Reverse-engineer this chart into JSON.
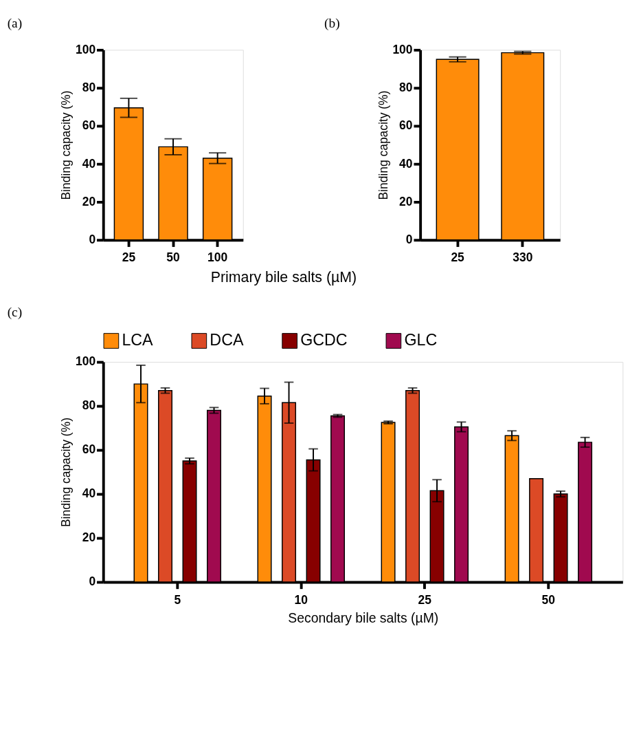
{
  "chart_data": [
    {
      "type": "bar",
      "title": "(a)",
      "xlabel": "Primary bile salts (µM)",
      "ylabel": "Binding capacity (%)",
      "categories": [
        "25",
        "50",
        "100"
      ],
      "values": [
        69.5,
        49,
        43
      ],
      "errors": [
        5,
        4.2,
        2.8
      ],
      "color": "#ff8c0a",
      "ylim": [
        0,
        100
      ],
      "yticks": [
        0,
        20,
        40,
        60,
        80,
        100
      ],
      "grid": false,
      "legend": false
    },
    {
      "type": "bar",
      "title": "(b)",
      "ylabel": "Binding capacity (%)",
      "categories": [
        "25",
        "330"
      ],
      "values": [
        95,
        98.5
      ],
      "errors": [
        1.3,
        0.7
      ],
      "color": "#ff8c0a",
      "ylim": [
        0,
        100
      ],
      "yticks": [
        0,
        20,
        40,
        60,
        80,
        100
      ],
      "grid": false,
      "legend": false
    },
    {
      "type": "bar",
      "title": "(c)",
      "xlabel": "Secondary bile salts (µM)",
      "ylabel": "Binding capacity (%)",
      "categories": [
        "5",
        "10",
        "25",
        "50"
      ],
      "series": [
        {
          "name": "LCA",
          "color": "#ff8c0a",
          "values": [
            90,
            84.5,
            72.5,
            66.5
          ],
          "errors": [
            8.5,
            3.5,
            0.6,
            2.2
          ]
        },
        {
          "name": "DCA",
          "color": "#dc4a26",
          "values": [
            87,
            81.5,
            87,
            47
          ],
          "errors": [
            1.2,
            9.3,
            1.2,
            null
          ]
        },
        {
          "name": "GCDC",
          "color": "#870000",
          "values": [
            55,
            55.5,
            41.5,
            40
          ],
          "errors": [
            1.3,
            5,
            5,
            1.3
          ]
        },
        {
          "name": "GLC",
          "color": "#a00a4f",
          "values": [
            78,
            75.5,
            70.5,
            63.5
          ],
          "errors": [
            1.3,
            0.6,
            2.2,
            2.2
          ]
        }
      ],
      "ylim": [
        0,
        100
      ],
      "yticks": [
        0,
        20,
        40,
        60,
        80,
        100
      ],
      "grid": false,
      "legend": "top"
    }
  ]
}
